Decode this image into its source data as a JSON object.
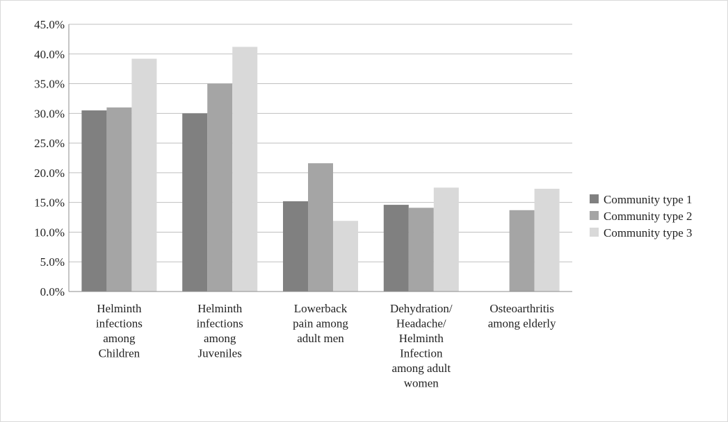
{
  "chart_data": {
    "type": "bar",
    "title": "",
    "xlabel": "",
    "ylabel": "",
    "ylim": [
      0,
      45
    ],
    "yticks": [
      "0.0%",
      "5.0%",
      "10.0%",
      "15.0%",
      "20.0%",
      "25.0%",
      "30.0%",
      "35.0%",
      "40.0%",
      "45.0%"
    ],
    "grid": true,
    "legend_position": "right",
    "categories": [
      [
        "Helminth",
        "infections",
        "among",
        "Children"
      ],
      [
        "Helminth",
        "infections",
        "among",
        "Juveniles"
      ],
      [
        "Lowerback",
        "pain among",
        "adult men"
      ],
      [
        "Dehydration/",
        "Headache/",
        "Helminth",
        "Infection",
        "among adult",
        "women"
      ],
      [
        "Osteoarthritis",
        "among elderly"
      ]
    ],
    "series": [
      {
        "name": "Community type 1",
        "color": "#808080",
        "values": [
          30.5,
          30.0,
          15.2,
          14.6,
          0.0
        ]
      },
      {
        "name": "Community type 2",
        "color": "#a5a5a5",
        "values": [
          31.0,
          35.0,
          21.6,
          14.1,
          13.7
        ]
      },
      {
        "name": "Community type 3",
        "color": "#d9d9d9",
        "values": [
          39.2,
          41.2,
          11.9,
          17.5,
          17.3
        ]
      }
    ]
  }
}
